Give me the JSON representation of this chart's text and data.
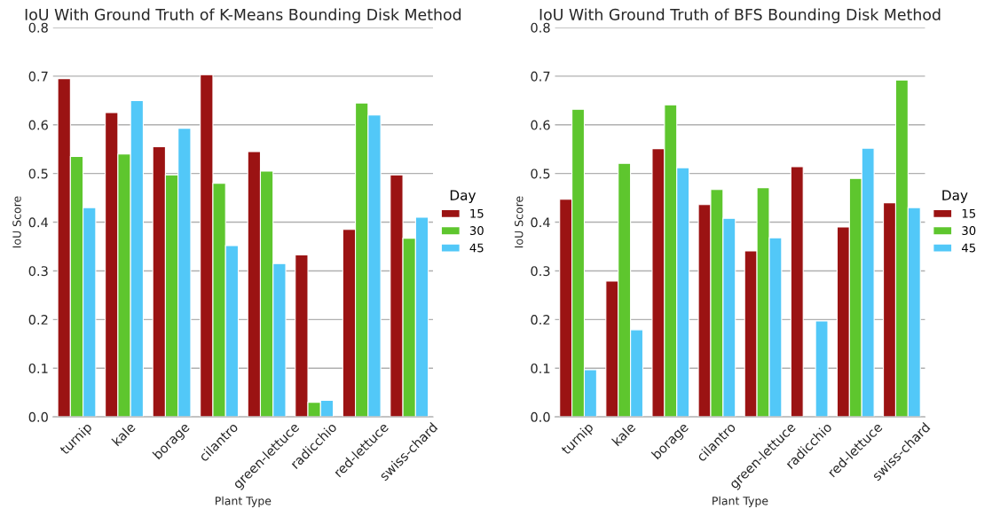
{
  "chart_data": [
    {
      "type": "bar",
      "title": "IoU With Ground Truth of K-Means Bounding Disk Method",
      "xlabel": "Plant Type",
      "ylabel": "IoU Score",
      "legend_title": "Day",
      "categories": [
        "turnip",
        "kale",
        "borage",
        "cilantro",
        "green-lettuce",
        "radicchio",
        "red-lettuce",
        "swiss-chard"
      ],
      "series": [
        {
          "name": "15",
          "color": "#9b1313",
          "values": [
            0.695,
            0.625,
            0.555,
            0.703,
            0.545,
            0.333,
            0.385,
            0.497
          ]
        },
        {
          "name": "30",
          "color": "#5ec62e",
          "values": [
            0.535,
            0.54,
            0.497,
            0.48,
            0.505,
            0.03,
            0.645,
            0.367
          ]
        },
        {
          "name": "45",
          "color": "#52c8f8",
          "values": [
            0.43,
            0.65,
            0.593,
            0.352,
            0.315,
            0.034,
            0.62,
            0.41
          ]
        }
      ],
      "ylim": [
        0,
        0.8
      ],
      "yticks": [
        {
          "value": 0,
          "label": "0.0"
        },
        0.1,
        0.2,
        0.3,
        0.4,
        0.5,
        0.6,
        0.7,
        0.8
      ],
      "grid": "y",
      "legend": "right"
    },
    {
      "type": "bar",
      "title": "IoU With Ground Truth of BFS Bounding Disk Method",
      "xlabel": "Plant Type",
      "ylabel": "IoU Score",
      "legend_title": "Day",
      "categories": [
        "turnip",
        "kale",
        "borage",
        "cilantro",
        "green-lettuce",
        "radicchio",
        "red-lettuce",
        "swiss-chard"
      ],
      "series": [
        {
          "name": "15",
          "color": "#9b1313",
          "values": [
            0.447,
            0.279,
            0.551,
            0.436,
            0.341,
            0.514,
            0.39,
            0.44
          ]
        },
        {
          "name": "30",
          "color": "#5ec62e",
          "values": [
            0.632,
            0.521,
            0.641,
            0.467,
            0.471,
            null,
            0.49,
            0.692
          ]
        },
        {
          "name": "45",
          "color": "#52c8f8",
          "values": [
            0.097,
            0.179,
            0.512,
            0.408,
            0.368,
            0.197,
            0.552,
            0.43
          ]
        }
      ],
      "ylim": [
        0,
        0.8
      ],
      "yticks": [
        {
          "value": 0,
          "label": "0.0"
        },
        0.1,
        0.2,
        0.3,
        0.4,
        0.5,
        0.6,
        0.7,
        0.8
      ],
      "grid": "y",
      "legend": "right"
    }
  ]
}
